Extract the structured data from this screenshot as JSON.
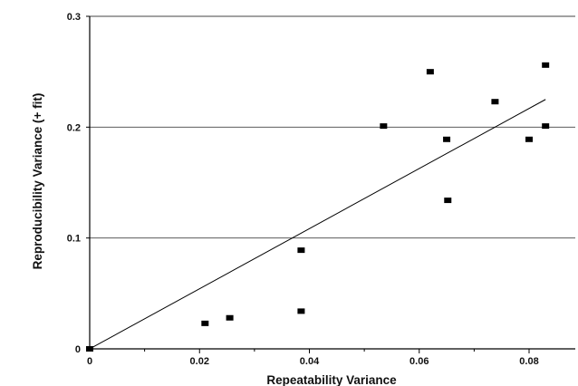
{
  "chart_data": {
    "type": "scatter",
    "xlabel": "Repeatability Variance",
    "ylabel": "Reproducibility Variance (+ fit)",
    "xlim": [
      0,
      0.09
    ],
    "ylim": [
      0,
      0.3
    ],
    "x_ticks": [
      0,
      0.02,
      0.04,
      0.06,
      0.08
    ],
    "x_tick_labels": [
      "0",
      "0.02",
      "0.04",
      "0.06",
      "0.08"
    ],
    "y_ticks": [
      0,
      0.1,
      0.2,
      0.3
    ],
    "y_tick_labels": [
      "0",
      "0.1",
      "0.2",
      "0.3"
    ],
    "grid": "horizontal",
    "series": [
      {
        "marker": "square",
        "color": "#000000",
        "points": [
          {
            "x": 0.0,
            "y": 0.0
          },
          {
            "x": 0.021,
            "y": 0.023
          },
          {
            "x": 0.0255,
            "y": 0.028
          },
          {
            "x": 0.0385,
            "y": 0.089
          },
          {
            "x": 0.0385,
            "y": 0.034
          },
          {
            "x": 0.0535,
            "y": 0.201
          },
          {
            "x": 0.062,
            "y": 0.25
          },
          {
            "x": 0.065,
            "y": 0.189
          },
          {
            "x": 0.0652,
            "y": 0.134
          },
          {
            "x": 0.0738,
            "y": 0.223
          },
          {
            "x": 0.08,
            "y": 0.189
          },
          {
            "x": 0.083,
            "y": 0.256
          },
          {
            "x": 0.083,
            "y": 0.201
          }
        ]
      }
    ],
    "fit_line": {
      "x": [
        0,
        0.083
      ],
      "y": [
        0,
        0.225
      ]
    }
  }
}
